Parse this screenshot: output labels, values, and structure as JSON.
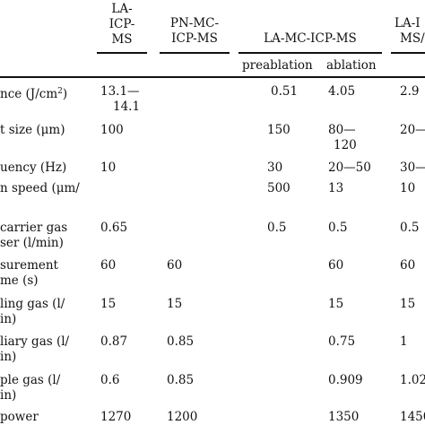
{
  "header": {
    "col1": [
      "LA-",
      "ICP-",
      "MS"
    ],
    "col2": [
      "PN-MC-",
      "ICP-MS"
    ],
    "col3": "LA-MC-ICP-MS",
    "col3_sub_a": "preablation",
    "col3_sub_b": "ablation",
    "col4": [
      "LA-I",
      "MS/"
    ]
  },
  "rows": [
    {
      "label": [
        "nce (J/cm",
        "2",
        ")"
      ],
      "c1": [
        "13.1—",
        "14.1"
      ],
      "c2": [],
      "c3a": [
        "0.51"
      ],
      "c3b": [
        "4.05"
      ],
      "c4": [
        "2.9"
      ]
    },
    {
      "label": [
        "t size (μm)"
      ],
      "c1": [
        "100"
      ],
      "c2": [],
      "c3a": [
        "150"
      ],
      "c3b": [
        "80—",
        "120"
      ],
      "c4": [
        "20—"
      ]
    },
    {
      "label": [
        "uency (Hz)"
      ],
      "c1": [
        "10"
      ],
      "c2": [],
      "c3a": [
        "30"
      ],
      "c3b": [
        "20—50"
      ],
      "c4": [
        "30—"
      ]
    },
    {
      "label": [
        "n speed (μm/"
      ],
      "c1": [],
      "c2": [],
      "c3a": [
        "500"
      ],
      "c3b": [
        "13"
      ],
      "c4": [
        "10"
      ]
    },
    {
      "label": [
        "carrier gas",
        "ser (l/min)"
      ],
      "c1": [
        "0.65"
      ],
      "c2": [],
      "c3a": [
        "0.5"
      ],
      "c3b": [
        "0.5"
      ],
      "c4": [
        "0.5"
      ]
    },
    {
      "label": [
        "surement",
        "me (s)"
      ],
      "c1": [
        "60"
      ],
      "c2": [
        "60"
      ],
      "c3a": [],
      "c3b": [
        "60"
      ],
      "c4": [
        "60"
      ]
    },
    {
      "label": [
        "ling gas (l/",
        "in)"
      ],
      "c1": [
        "15"
      ],
      "c2": [
        "15"
      ],
      "c3a": [],
      "c3b": [
        "15"
      ],
      "c4": [
        "15"
      ]
    },
    {
      "label": [
        "liary gas (l/",
        "in)"
      ],
      "c1": [
        "0.87"
      ],
      "c2": [
        "0.85"
      ],
      "c3a": [],
      "c3b": [
        "0.75"
      ],
      "c4": [
        "1"
      ]
    },
    {
      "label": [
        "ple gas (l/",
        "in)"
      ],
      "c1": [
        "0.6"
      ],
      "c2": [
        "0.85"
      ],
      "c3a": [],
      "c3b": [
        "0.909"
      ],
      "c4": [
        "1.02"
      ]
    },
    {
      "label": [
        "power"
      ],
      "c1": [
        "1270"
      ],
      "c2": [
        "1200"
      ],
      "c3a": [],
      "c3b": [
        "1350"
      ],
      "c4": [
        "1450"
      ]
    }
  ]
}
